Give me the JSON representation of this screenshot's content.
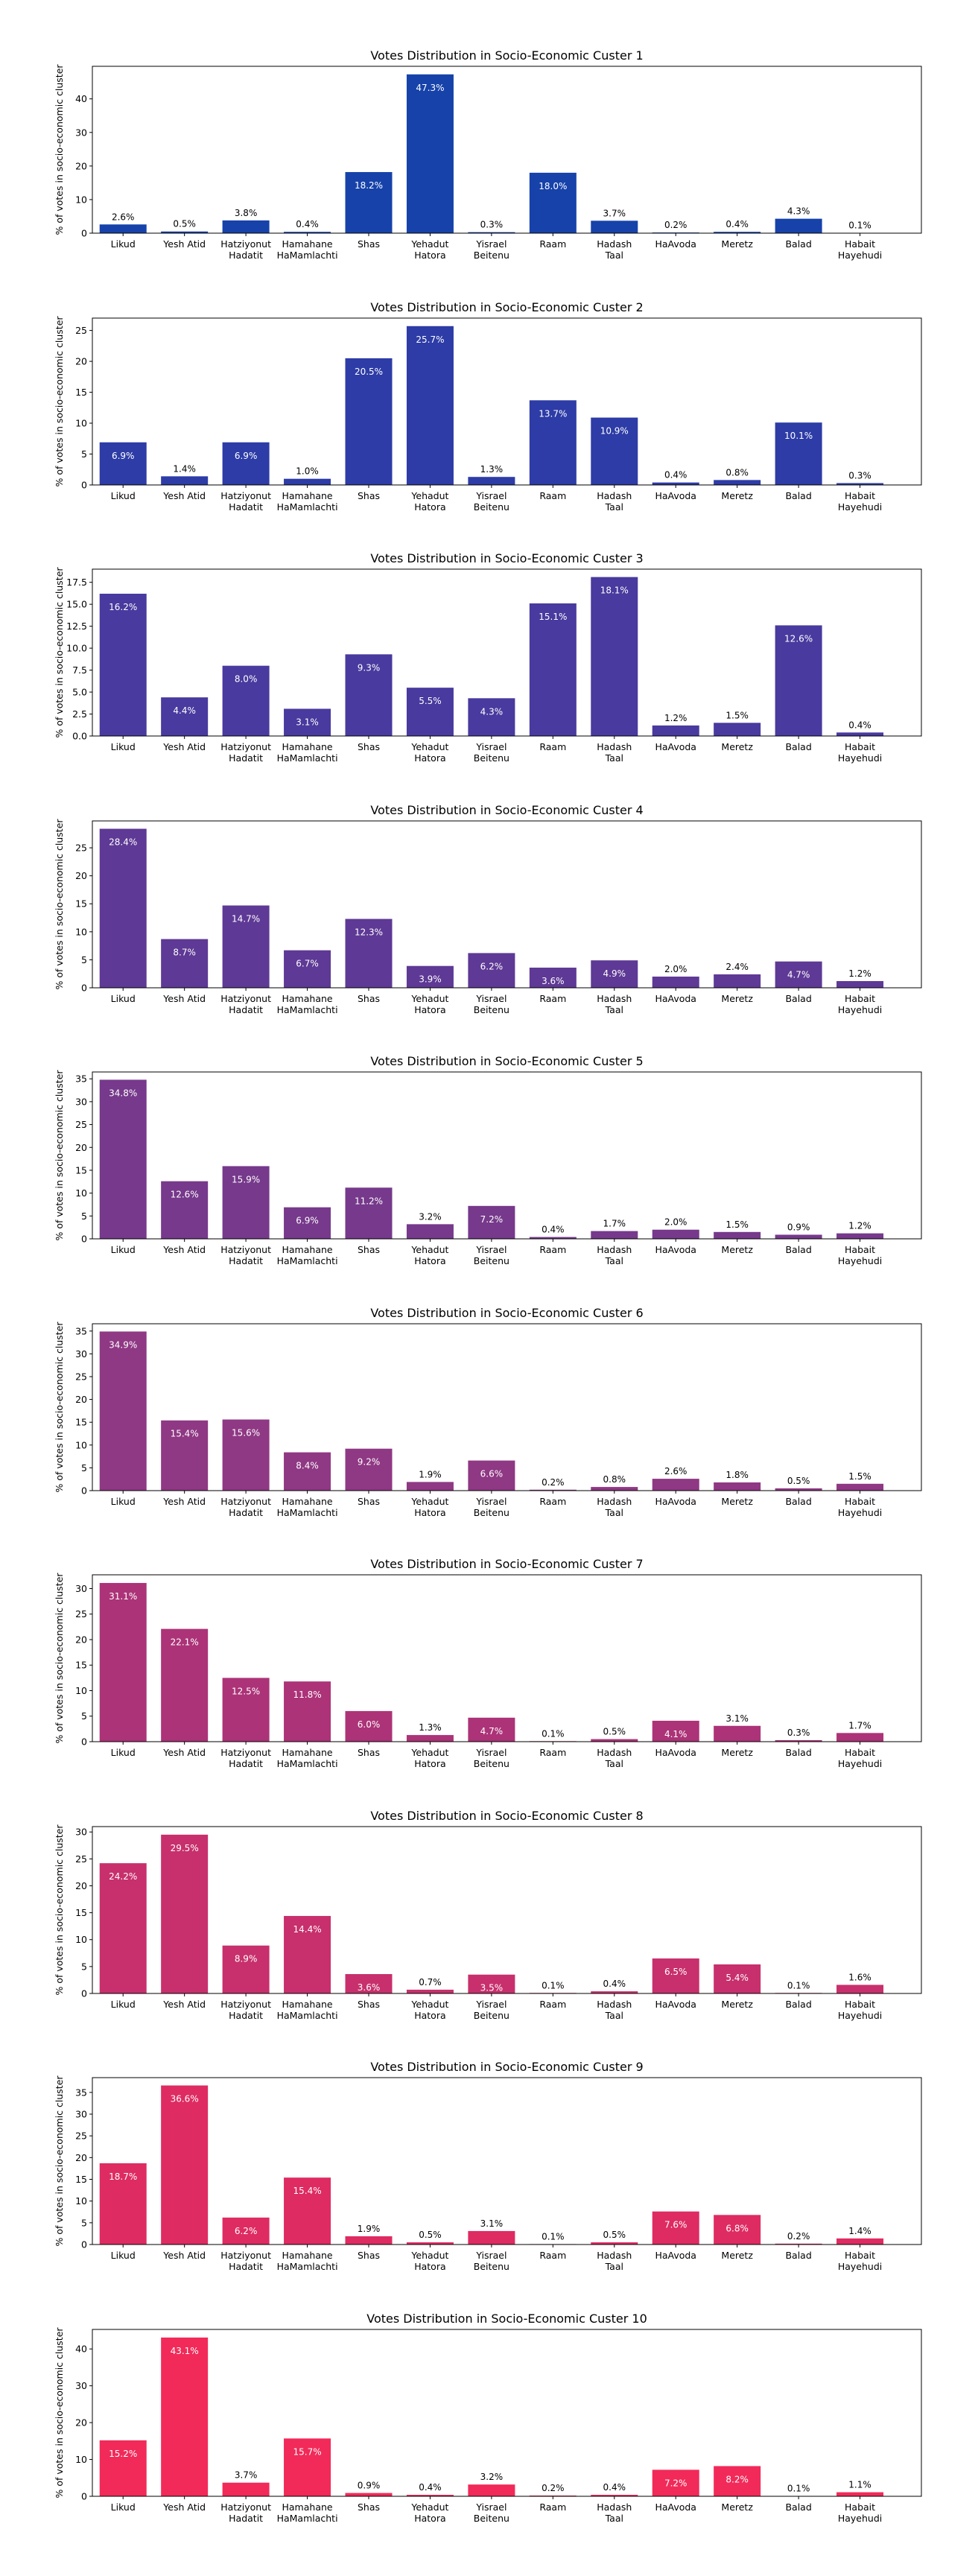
{
  "chart_data": [
    {
      "type": "bar",
      "title": "Votes Distribution in Socio-Economic Custer 1",
      "xlabel": "",
      "ylabel": "% of votes in socio-economic cluster",
      "color": "#1642AA",
      "categories": [
        "Likud",
        "Yesh Atid",
        "Hatziyonut\nHadatit",
        "Hamahane\nHaMamlachti",
        "Shas",
        "Yehadut\nHatora",
        "Yisrael\nBeitenu",
        "Raam",
        "Hadash\nTaal",
        "HaAvoda",
        "Meretz",
        "Balad",
        "Habait\nHayehudi"
      ],
      "values": [
        2.6,
        0.5,
        3.8,
        0.4,
        18.2,
        47.3,
        0.3,
        18.0,
        3.7,
        0.2,
        0.4,
        4.3,
        0.1
      ],
      "labels": [
        "2.6%",
        "0.5%",
        "3.8%",
        "0.4%",
        "18.2%",
        "47.3%",
        "0.3%",
        "18.0%",
        "3.7%",
        "0.2%",
        "0.4%",
        "4.3%",
        "0.1%"
      ],
      "ylim": [
        0,
        49.7
      ],
      "yticks": [
        0,
        10,
        20,
        30,
        40
      ],
      "yticklabels": [
        "0",
        "10",
        "20",
        "30",
        "40"
      ]
    },
    {
      "type": "bar",
      "title": "Votes Distribution in Socio-Economic Custer 2",
      "xlabel": "",
      "ylabel": "% of votes in socio-economic cluster",
      "color": "#2D3CA6",
      "categories": [
        "Likud",
        "Yesh Atid",
        "Hatziyonut\nHadatit",
        "Hamahane\nHaMamlachti",
        "Shas",
        "Yehadut\nHatora",
        "Yisrael\nBeitenu",
        "Raam",
        "Hadash\nTaal",
        "HaAvoda",
        "Meretz",
        "Balad",
        "Habait\nHayehudi"
      ],
      "values": [
        6.9,
        1.4,
        6.9,
        1.0,
        20.5,
        25.7,
        1.3,
        13.7,
        10.9,
        0.4,
        0.8,
        10.1,
        0.3
      ],
      "labels": [
        "6.9%",
        "1.4%",
        "6.9%",
        "1.0%",
        "20.5%",
        "25.7%",
        "1.3%",
        "13.7%",
        "10.9%",
        "0.4%",
        "0.8%",
        "10.1%",
        "0.3%"
      ],
      "ylim": [
        0,
        27.0
      ],
      "yticks": [
        0,
        5,
        10,
        15,
        20,
        25
      ],
      "yticklabels": [
        "0",
        "5",
        "10",
        "15",
        "20",
        "25"
      ]
    },
    {
      "type": "bar",
      "title": "Votes Distribution in Socio-Economic Custer 3",
      "xlabel": "",
      "ylabel": "% of votes in socio-economic cluster",
      "color": "#483A9E",
      "categories": [
        "Likud",
        "Yesh Atid",
        "Hatziyonut\nHadatit",
        "Hamahane\nHaMamlachti",
        "Shas",
        "Yehadut\nHatora",
        "Yisrael\nBeitenu",
        "Raam",
        "Hadash\nTaal",
        "HaAvoda",
        "Meretz",
        "Balad",
        "Habait\nHayehudi"
      ],
      "values": [
        16.2,
        4.4,
        8.0,
        3.1,
        9.3,
        5.5,
        4.3,
        15.1,
        18.1,
        1.2,
        1.5,
        12.6,
        0.4
      ],
      "labels": [
        "16.2%",
        "4.4%",
        "8.0%",
        "3.1%",
        "9.3%",
        "5.5%",
        "4.3%",
        "15.1%",
        "18.1%",
        "1.2%",
        "1.5%",
        "12.6%",
        "0.4%"
      ],
      "ylim": [
        0,
        19.0
      ],
      "yticks": [
        0,
        2.5,
        5,
        7.5,
        10,
        12.5,
        15,
        17.5
      ],
      "yticklabels": [
        "0.0",
        "2.5",
        "5.0",
        "7.5",
        "10.0",
        "12.5",
        "15.0",
        "17.5"
      ]
    },
    {
      "type": "bar",
      "title": "Votes Distribution in Socio-Economic Custer 4",
      "xlabel": "",
      "ylabel": "% of votes in socio-economic cluster",
      "color": "#5E3995",
      "categories": [
        "Likud",
        "Yesh Atid",
        "Hatziyonut\nHadatit",
        "Hamahane\nHaMamlachti",
        "Shas",
        "Yehadut\nHatora",
        "Yisrael\nBeitenu",
        "Raam",
        "Hadash\nTaal",
        "HaAvoda",
        "Meretz",
        "Balad",
        "Habait\nHayehudi"
      ],
      "values": [
        28.4,
        8.7,
        14.7,
        6.7,
        12.3,
        3.9,
        6.2,
        3.6,
        4.9,
        2.0,
        2.4,
        4.7,
        1.2
      ],
      "labels": [
        "28.4%",
        "8.7%",
        "14.7%",
        "6.7%",
        "12.3%",
        "3.9%",
        "6.2%",
        "3.6%",
        "4.9%",
        "2.0%",
        "2.4%",
        "4.7%",
        "1.2%"
      ],
      "ylim": [
        0,
        29.8
      ],
      "yticks": [
        0,
        5,
        10,
        15,
        20,
        25
      ],
      "yticklabels": [
        "0",
        "5",
        "10",
        "15",
        "20",
        "25"
      ]
    },
    {
      "type": "bar",
      "title": "Votes Distribution in Socio-Economic Custer 5",
      "xlabel": "",
      "ylabel": "% of votes in socio-economic cluster",
      "color": "#76398B",
      "categories": [
        "Likud",
        "Yesh Atid",
        "Hatziyonut\nHadatit",
        "Hamahane\nHaMamlachti",
        "Shas",
        "Yehadut\nHatora",
        "Yisrael\nBeitenu",
        "Raam",
        "Hadash\nTaal",
        "HaAvoda",
        "Meretz",
        "Balad",
        "Habait\nHayehudi"
      ],
      "values": [
        34.8,
        12.6,
        15.9,
        6.9,
        11.2,
        3.2,
        7.2,
        0.4,
        1.7,
        2.0,
        1.5,
        0.9,
        1.2
      ],
      "labels": [
        "34.8%",
        "12.6%",
        "15.9%",
        "6.9%",
        "11.2%",
        "3.2%",
        "7.2%",
        "0.4%",
        "1.7%",
        "2.0%",
        "1.5%",
        "0.9%",
        "1.2%"
      ],
      "ylim": [
        0,
        36.5
      ],
      "yticks": [
        0,
        5,
        10,
        15,
        20,
        25,
        30,
        35
      ],
      "yticklabels": [
        "0",
        "5",
        "10",
        "15",
        "20",
        "25",
        "30",
        "35"
      ]
    },
    {
      "type": "bar",
      "title": "Votes Distribution in Socio-Economic Custer 6",
      "xlabel": "",
      "ylabel": "% of votes in socio-economic cluster",
      "color": "#8F3884",
      "categories": [
        "Likud",
        "Yesh Atid",
        "Hatziyonut\nHadatit",
        "Hamahane\nHaMamlachti",
        "Shas",
        "Yehadut\nHatora",
        "Yisrael\nBeitenu",
        "Raam",
        "Hadash\nTaal",
        "HaAvoda",
        "Meretz",
        "Balad",
        "Habait\nHayehudi"
      ],
      "values": [
        34.9,
        15.4,
        15.6,
        8.4,
        9.2,
        1.9,
        6.6,
        0.2,
        0.8,
        2.6,
        1.8,
        0.5,
        1.5
      ],
      "labels": [
        "34.9%",
        "15.4%",
        "15.6%",
        "8.4%",
        "9.2%",
        "1.9%",
        "6.6%",
        "0.2%",
        "0.8%",
        "2.6%",
        "1.8%",
        "0.5%",
        "1.5%"
      ],
      "ylim": [
        0,
        36.6
      ],
      "yticks": [
        0,
        5,
        10,
        15,
        20,
        25,
        30,
        35
      ],
      "yticklabels": [
        "0",
        "5",
        "10",
        "15",
        "20",
        "25",
        "30",
        "35"
      ]
    },
    {
      "type": "bar",
      "title": "Votes Distribution in Socio-Economic Custer 7",
      "xlabel": "",
      "ylabel": "% of votes in socio-economic cluster",
      "color": "#AC3378",
      "categories": [
        "Likud",
        "Yesh Atid",
        "Hatziyonut\nHadatit",
        "Hamahane\nHaMamlachti",
        "Shas",
        "Yehadut\nHatora",
        "Yisrael\nBeitenu",
        "Raam",
        "Hadash\nTaal",
        "HaAvoda",
        "Meretz",
        "Balad",
        "Habait\nHayehudi"
      ],
      "values": [
        31.1,
        22.1,
        12.5,
        11.8,
        6.0,
        1.3,
        4.7,
        0.1,
        0.5,
        4.1,
        3.1,
        0.3,
        1.7
      ],
      "labels": [
        "31.1%",
        "22.1%",
        "12.5%",
        "11.8%",
        "6.0%",
        "1.3%",
        "4.7%",
        "0.1%",
        "0.5%",
        "4.1%",
        "3.1%",
        "0.3%",
        "1.7%"
      ],
      "ylim": [
        0,
        32.7
      ],
      "yticks": [
        0,
        5,
        10,
        15,
        20,
        25,
        30
      ],
      "yticklabels": [
        "0",
        "5",
        "10",
        "15",
        "20",
        "25",
        "30"
      ]
    },
    {
      "type": "bar",
      "title": "Votes Distribution in Socio-Economic Custer 8",
      "xlabel": "",
      "ylabel": "% of votes in socio-economic cluster",
      "color": "#C7306C",
      "categories": [
        "Likud",
        "Yesh Atid",
        "Hatziyonut\nHadatit",
        "Hamahane\nHaMamlachti",
        "Shas",
        "Yehadut\nHatora",
        "Yisrael\nBeitenu",
        "Raam",
        "Hadash\nTaal",
        "HaAvoda",
        "Meretz",
        "Balad",
        "Habait\nHayehudi"
      ],
      "values": [
        24.2,
        29.5,
        8.9,
        14.4,
        3.6,
        0.7,
        3.5,
        0.1,
        0.4,
        6.5,
        5.4,
        0.1,
        1.6
      ],
      "labels": [
        "24.2%",
        "29.5%",
        "8.9%",
        "14.4%",
        "3.6%",
        "0.7%",
        "3.5%",
        "0.1%",
        "0.4%",
        "6.5%",
        "5.4%",
        "0.1%",
        "1.6%"
      ],
      "ylim": [
        0,
        31.0
      ],
      "yticks": [
        0,
        5,
        10,
        15,
        20,
        25,
        30
      ],
      "yticklabels": [
        "0",
        "5",
        "10",
        "15",
        "20",
        "25",
        "30"
      ]
    },
    {
      "type": "bar",
      "title": "Votes Distribution in Socio-Economic Custer 9",
      "xlabel": "",
      "ylabel": "% of votes in socio-economic cluster",
      "color": "#DE2B62",
      "categories": [
        "Likud",
        "Yesh Atid",
        "Hatziyonut\nHadatit",
        "Hamahane\nHaMamlachti",
        "Shas",
        "Yehadut\nHatora",
        "Yisrael\nBeitenu",
        "Raam",
        "Hadash\nTaal",
        "HaAvoda",
        "Meretz",
        "Balad",
        "Habait\nHayehudi"
      ],
      "values": [
        18.7,
        36.6,
        6.2,
        15.4,
        1.9,
        0.5,
        3.1,
        0.1,
        0.5,
        7.6,
        6.8,
        0.2,
        1.4
      ],
      "labels": [
        "18.7%",
        "36.6%",
        "6.2%",
        "15.4%",
        "1.9%",
        "0.5%",
        "3.1%",
        "0.1%",
        "0.5%",
        "7.6%",
        "6.8%",
        "0.2%",
        "1.4%"
      ],
      "ylim": [
        0,
        38.4
      ],
      "yticks": [
        0,
        5,
        10,
        15,
        20,
        25,
        30,
        35
      ],
      "yticklabels": [
        "0",
        "5",
        "10",
        "15",
        "20",
        "25",
        "30",
        "35"
      ]
    },
    {
      "type": "bar",
      "title": "Votes Distribution in Socio-Economic Custer 10",
      "xlabel": "",
      "ylabel": "% of votes in socio-economic cluster",
      "color": "#F12A59",
      "categories": [
        "Likud",
        "Yesh Atid",
        "Hatziyonut\nHadatit",
        "Hamahane\nHaMamlachti",
        "Shas",
        "Yehadut\nHatora",
        "Yisrael\nBeitenu",
        "Raam",
        "Hadash\nTaal",
        "HaAvoda",
        "Meretz",
        "Balad",
        "Habait\nHayehudi"
      ],
      "values": [
        15.2,
        43.1,
        3.7,
        15.7,
        0.9,
        0.4,
        3.2,
        0.2,
        0.4,
        7.2,
        8.2,
        0.1,
        1.1
      ],
      "labels": [
        "15.2%",
        "43.1%",
        "3.7%",
        "15.7%",
        "0.9%",
        "0.4%",
        "3.2%",
        "0.2%",
        "0.4%",
        "7.2%",
        "8.2%",
        "0.1%",
        "1.1%"
      ],
      "ylim": [
        0,
        45.3
      ],
      "yticks": [
        0,
        10,
        20,
        30,
        40
      ],
      "yticklabels": [
        "0",
        "10",
        "20",
        "30",
        "40"
      ]
    }
  ]
}
